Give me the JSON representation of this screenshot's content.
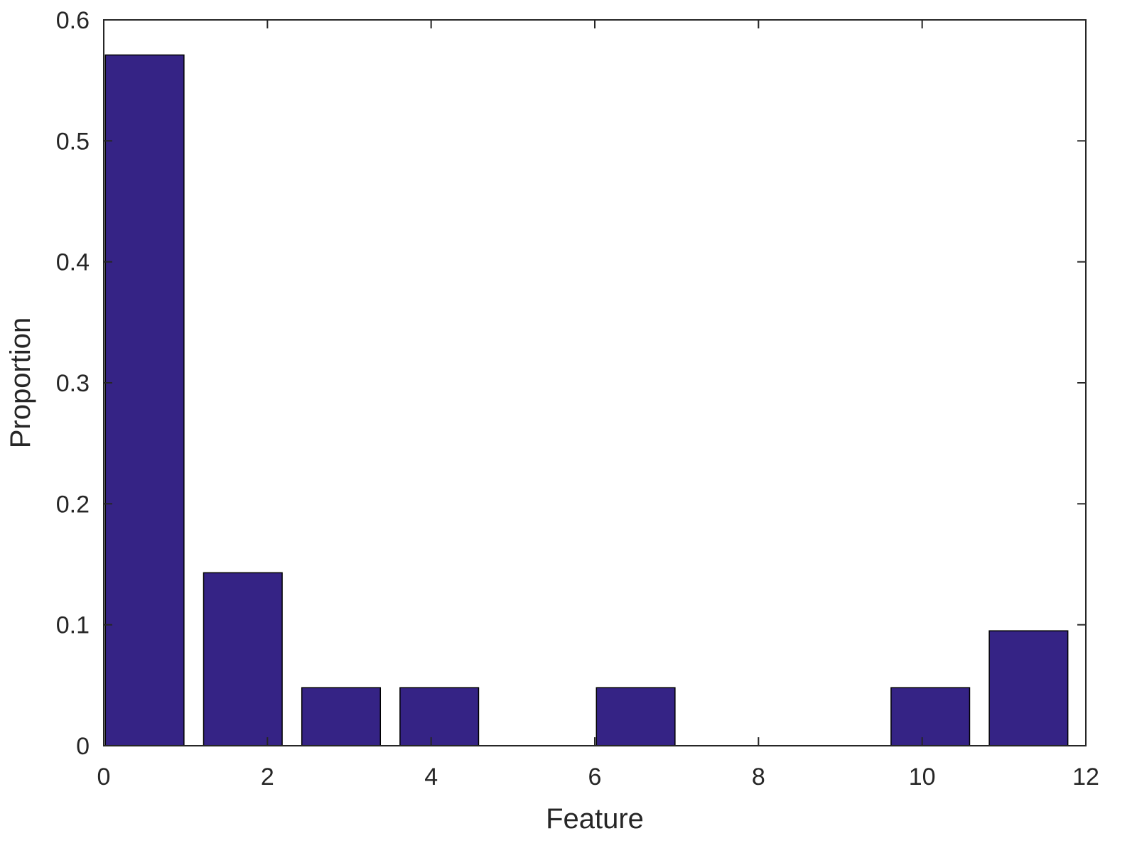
{
  "chart_data": {
    "type": "bar",
    "title": "",
    "xlabel": "Feature",
    "ylabel": "Proportion",
    "x": [
      0.5,
      1.7,
      2.9,
      4.1,
      5.3,
      6.5,
      7.7,
      8.9,
      10.1,
      11.3
    ],
    "values": [
      0.571,
      0.143,
      0.048,
      0.048,
      0.0,
      0.048,
      0.0,
      0.0,
      0.048,
      0.095
    ],
    "bar_width": 0.96,
    "xlim": [
      0,
      12
    ],
    "ylim": [
      0,
      0.6
    ],
    "xticks": [
      0,
      2,
      4,
      6,
      8,
      10,
      12
    ],
    "yticks": [
      0,
      0.1,
      0.2,
      0.3,
      0.4,
      0.5,
      0.6
    ],
    "xtick_labels": [
      "0",
      "2",
      "4",
      "6",
      "8",
      "10",
      "12"
    ],
    "ytick_labels": [
      "0",
      "0.1",
      "0.2",
      "0.3",
      "0.4",
      "0.5",
      "0.6"
    ],
    "grid": false,
    "bar_color": "#352385",
    "bar_edge_color": "#000000",
    "axis_color": "#262626"
  }
}
